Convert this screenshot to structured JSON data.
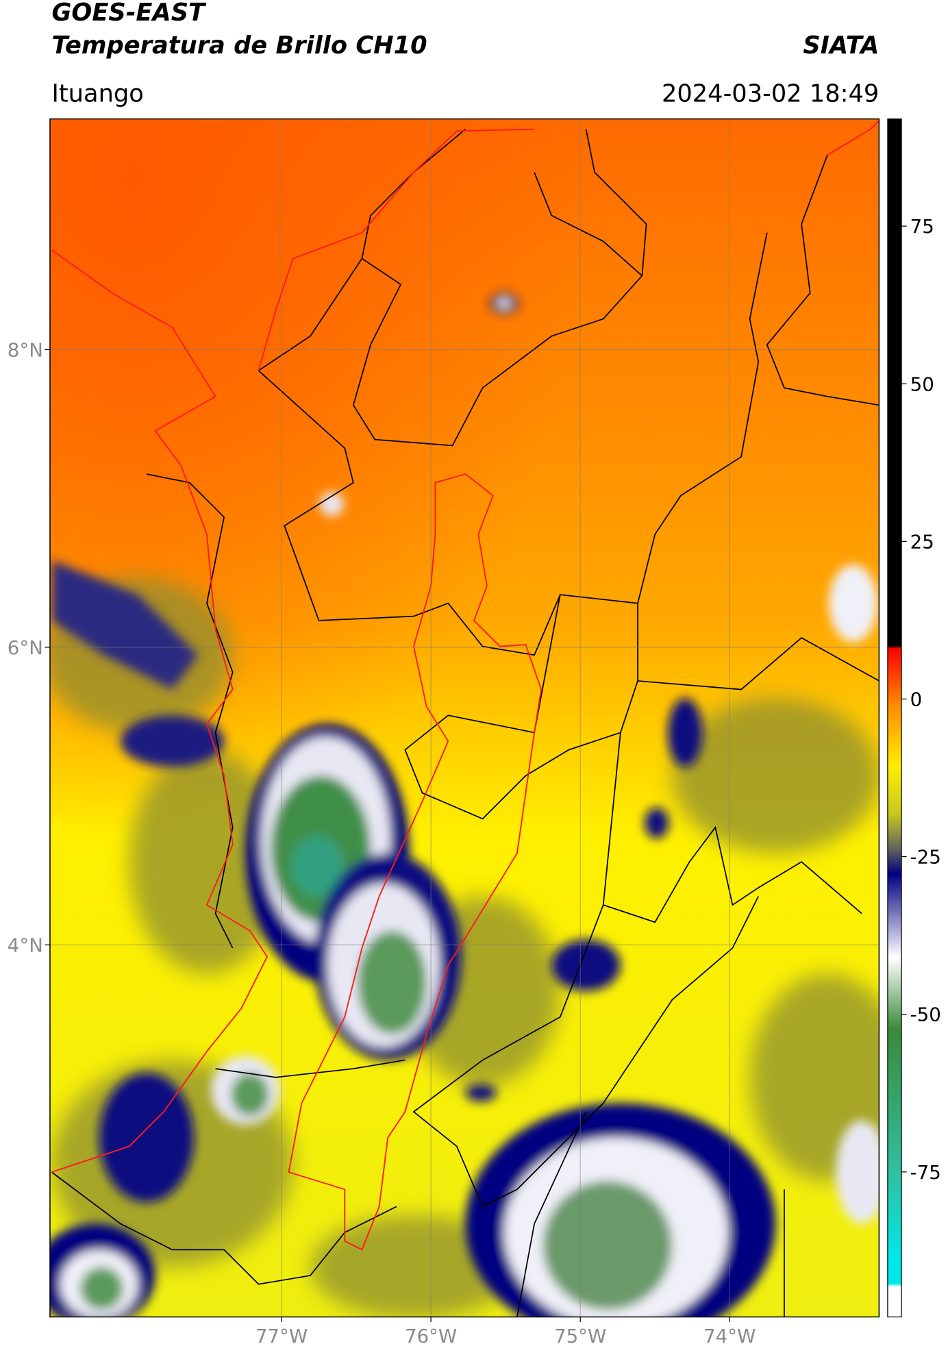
{
  "header": {
    "title": "GOES-EAST",
    "subtitle": "Temperatura de Brillo CH10",
    "source": "SIATA",
    "location": "Ituango",
    "datetime": "2024-03-02 18:49"
  },
  "map": {
    "lat_range": [
      1.5,
      9.55
    ],
    "lon_range": [
      -78.55,
      -73.0
    ],
    "lat_ticks": [
      {
        "value": 8,
        "label": "8°N"
      },
      {
        "value": 6,
        "label": "6°N"
      },
      {
        "value": 4,
        "label": "4°N"
      }
    ],
    "lon_ticks": [
      {
        "value": -77,
        "label": "77°W"
      },
      {
        "value": -76,
        "label": "76°W"
      },
      {
        "value": -75,
        "label": "75°W"
      },
      {
        "value": -74,
        "label": "74°W"
      }
    ]
  },
  "colorbar": {
    "range": [
      -98,
      92
    ],
    "ticks": [
      75,
      50,
      25,
      0,
      -25,
      -50,
      -75
    ]
  }
}
